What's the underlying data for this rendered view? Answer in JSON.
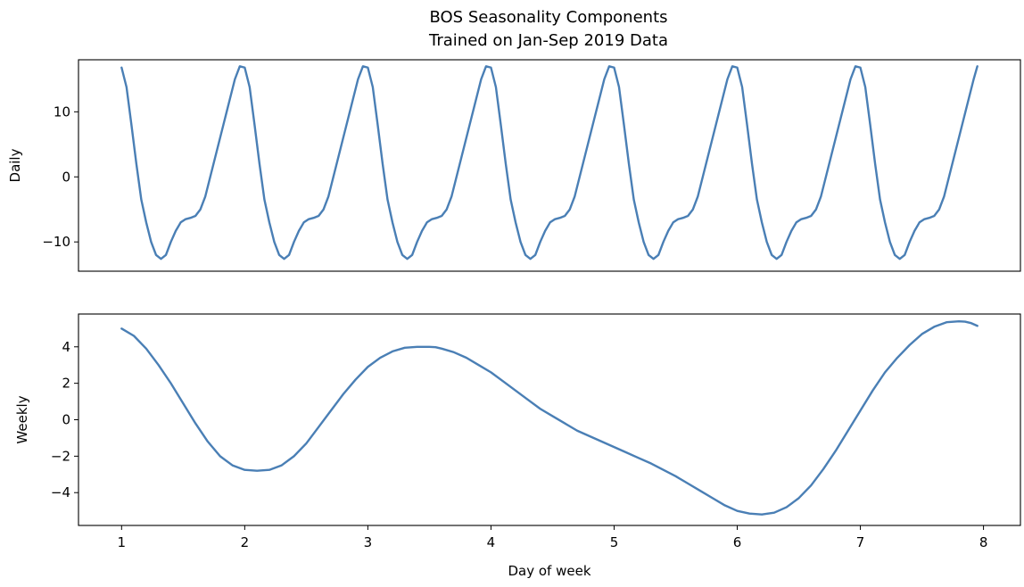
{
  "chart_data": [
    {
      "type": "line",
      "title": "BOS Seasonality Components\nTrained on Jan-Sep 2019 Data",
      "title_lines": [
        "BOS Seasonality Components",
        "Trained on Jan-Sep 2019 Data"
      ],
      "xlabel": "",
      "ylabel": "Daily",
      "xlim": [
        0.65,
        8.3
      ],
      "ylim": [
        -14.5,
        18.0
      ],
      "yticks": [
        -10,
        0,
        10
      ],
      "ytick_labels": [
        "−10",
        "0",
        "10"
      ],
      "xticks_shown": false,
      "grid": false,
      "color": "#4a7fb5",
      "series": [
        {
          "x": [
            1.0,
            1.04,
            1.08,
            1.12,
            1.16,
            1.2,
            1.24,
            1.28,
            1.32,
            1.36,
            1.4,
            1.44,
            1.48,
            1.52,
            1.56,
            1.6,
            1.64,
            1.68,
            1.72,
            1.76,
            1.8,
            1.84,
            1.88,
            1.92,
            1.96,
            2.0,
            2.04,
            2.08,
            2.12,
            2.16,
            2.2,
            2.24,
            2.28,
            2.32,
            2.36,
            2.4,
            2.44,
            2.48,
            2.52,
            2.56,
            2.6,
            2.64,
            2.68,
            2.72,
            2.76,
            2.8,
            2.84,
            2.88,
            2.92,
            2.96,
            3.0,
            3.04,
            3.08,
            3.12,
            3.16,
            3.2,
            3.24,
            3.28,
            3.32,
            3.36,
            3.4,
            3.44,
            3.48,
            3.52,
            3.56,
            3.6,
            3.64,
            3.68,
            3.72,
            3.76,
            3.8,
            3.84,
            3.88,
            3.92,
            3.96,
            4.0,
            4.04,
            4.08,
            4.12,
            4.16,
            4.2,
            4.24,
            4.28,
            4.32,
            4.36,
            4.4,
            4.44,
            4.48,
            4.52,
            4.56,
            4.6,
            4.64,
            4.68,
            4.72,
            4.76,
            4.8,
            4.84,
            4.88,
            4.92,
            4.96,
            5.0,
            5.04,
            5.08,
            5.12,
            5.16,
            5.2,
            5.24,
            5.28,
            5.32,
            5.36,
            5.4,
            5.44,
            5.48,
            5.52,
            5.56,
            5.6,
            5.64,
            5.68,
            5.72,
            5.76,
            5.8,
            5.84,
            5.88,
            5.92,
            5.96,
            6.0,
            6.04,
            6.08,
            6.12,
            6.16,
            6.2,
            6.24,
            6.28,
            6.32,
            6.36,
            6.4,
            6.44,
            6.48,
            6.52,
            6.56,
            6.6,
            6.64,
            6.68,
            6.72,
            6.76,
            6.8,
            6.84,
            6.88,
            6.92,
            6.96,
            7.0,
            7.04,
            7.08,
            7.12,
            7.16,
            7.2,
            7.24,
            7.28,
            7.32,
            7.36,
            7.4,
            7.44,
            7.48,
            7.52,
            7.56,
            7.6,
            7.64,
            7.68,
            7.72,
            7.76,
            7.8,
            7.84,
            7.88,
            7.92,
            7.95
          ],
          "y": [
            16.8,
            13.8,
            8.0,
            2.0,
            -3.5,
            -7.0,
            -10.0,
            -12.0,
            -12.6,
            -12.0,
            -10.0,
            -8.3,
            -7.0,
            -6.5,
            -6.3,
            -6.0,
            -5.0,
            -3.0,
            0.0,
            3.0,
            6.0,
            9.0,
            12.0,
            15.0,
            17.0,
            16.8,
            13.8,
            8.0,
            2.0,
            -3.5,
            -7.0,
            -10.0,
            -12.0,
            -12.6,
            -12.0,
            -10.0,
            -8.3,
            -7.0,
            -6.5,
            -6.3,
            -6.0,
            -5.0,
            -3.0,
            0.0,
            3.0,
            6.0,
            9.0,
            12.0,
            15.0,
            17.0,
            16.8,
            13.8,
            8.0,
            2.0,
            -3.5,
            -7.0,
            -10.0,
            -12.0,
            -12.6,
            -12.0,
            -10.0,
            -8.3,
            -7.0,
            -6.5,
            -6.3,
            -6.0,
            -5.0,
            -3.0,
            0.0,
            3.0,
            6.0,
            9.0,
            12.0,
            15.0,
            17.0,
            16.8,
            13.8,
            8.0,
            2.0,
            -3.5,
            -7.0,
            -10.0,
            -12.0,
            -12.6,
            -12.0,
            -10.0,
            -8.3,
            -7.0,
            -6.5,
            -6.3,
            -6.0,
            -5.0,
            -3.0,
            0.0,
            3.0,
            6.0,
            9.0,
            12.0,
            15.0,
            17.0,
            16.8,
            13.8,
            8.0,
            2.0,
            -3.5,
            -7.0,
            -10.0,
            -12.0,
            -12.6,
            -12.0,
            -10.0,
            -8.3,
            -7.0,
            -6.5,
            -6.3,
            -6.0,
            -5.0,
            -3.0,
            0.0,
            3.0,
            6.0,
            9.0,
            12.0,
            15.0,
            17.0,
            16.8,
            13.8,
            8.0,
            2.0,
            -3.5,
            -7.0,
            -10.0,
            -12.0,
            -12.6,
            -12.0,
            -10.0,
            -8.3,
            -7.0,
            -6.5,
            -6.3,
            -6.0,
            -5.0,
            -3.0,
            0.0,
            3.0,
            6.0,
            9.0,
            12.0,
            15.0,
            17.0,
            16.8,
            13.8,
            8.0,
            2.0,
            -3.5,
            -7.0,
            -10.0,
            -12.0,
            -12.6,
            -12.0,
            -10.0,
            -8.3,
            -7.0,
            -6.5,
            -6.3,
            -6.0,
            -5.0,
            -3.0,
            0.0,
            3.0,
            6.0,
            9.0,
            12.0,
            15.0,
            17.0
          ]
        }
      ]
    },
    {
      "type": "line",
      "title": "",
      "xlabel": "Day of week",
      "ylabel": "Weekly",
      "xlim": [
        0.65,
        8.3
      ],
      "ylim": [
        -5.8,
        5.8
      ],
      "xticks": [
        1,
        2,
        3,
        4,
        5,
        6,
        7,
        8
      ],
      "xtick_labels": [
        "1",
        "2",
        "3",
        "4",
        "5",
        "6",
        "7",
        "8"
      ],
      "yticks": [
        -4,
        -2,
        0,
        2,
        4
      ],
      "ytick_labels": [
        "−4",
        "−2",
        "0",
        "2",
        "4"
      ],
      "grid": false,
      "color": "#4a7fb5",
      "series": [
        {
          "x": [
            1.0,
            1.1,
            1.2,
            1.3,
            1.4,
            1.5,
            1.6,
            1.7,
            1.8,
            1.9,
            2.0,
            2.1,
            2.2,
            2.3,
            2.4,
            2.5,
            2.6,
            2.7,
            2.8,
            2.9,
            3.0,
            3.1,
            3.2,
            3.3,
            3.4,
            3.5,
            3.55,
            3.6,
            3.7,
            3.8,
            3.9,
            4.0,
            4.1,
            4.2,
            4.3,
            4.4,
            4.5,
            4.6,
            4.7,
            4.8,
            4.9,
            5.0,
            5.1,
            5.2,
            5.3,
            5.4,
            5.5,
            5.6,
            5.7,
            5.8,
            5.9,
            6.0,
            6.1,
            6.2,
            6.3,
            6.4,
            6.5,
            6.6,
            6.7,
            6.8,
            6.9,
            7.0,
            7.1,
            7.2,
            7.3,
            7.4,
            7.5,
            7.6,
            7.7,
            7.8,
            7.85,
            7.9,
            7.95
          ],
          "y": [
            5.0,
            4.6,
            3.9,
            3.0,
            2.0,
            0.9,
            -0.2,
            -1.2,
            -2.0,
            -2.5,
            -2.75,
            -2.8,
            -2.75,
            -2.5,
            -2.0,
            -1.3,
            -0.4,
            0.5,
            1.4,
            2.2,
            2.9,
            3.4,
            3.75,
            3.95,
            4.0,
            4.0,
            3.98,
            3.9,
            3.7,
            3.4,
            3.0,
            2.6,
            2.1,
            1.6,
            1.1,
            0.6,
            0.2,
            -0.2,
            -0.6,
            -0.9,
            -1.2,
            -1.5,
            -1.8,
            -2.1,
            -2.4,
            -2.75,
            -3.1,
            -3.5,
            -3.9,
            -4.3,
            -4.7,
            -5.0,
            -5.15,
            -5.2,
            -5.1,
            -4.8,
            -4.3,
            -3.6,
            -2.7,
            -1.7,
            -0.6,
            0.5,
            1.6,
            2.6,
            3.4,
            4.1,
            4.7,
            5.1,
            5.35,
            5.4,
            5.38,
            5.3,
            5.15
          ]
        }
      ]
    }
  ]
}
